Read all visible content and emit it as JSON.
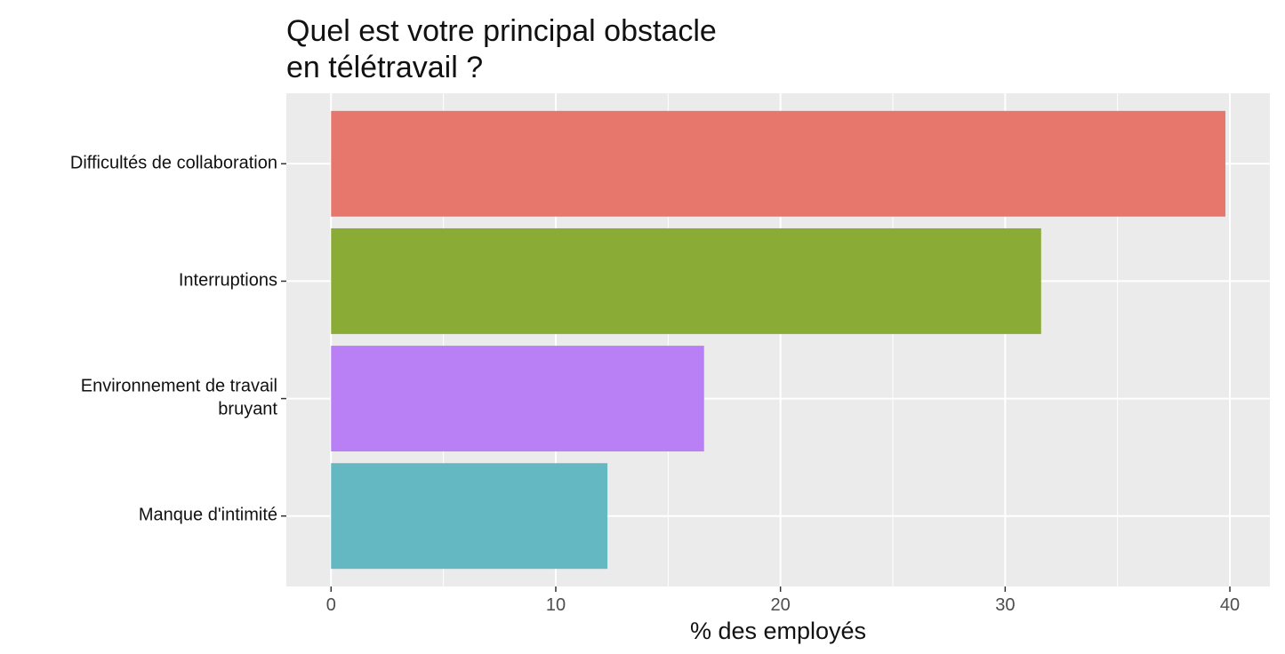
{
  "chart_data": {
    "type": "bar",
    "orientation": "horizontal",
    "title": "Quel est votre principal obstacle\nen télétravail ?",
    "categories": [
      "Difficultés de collaboration",
      "Interruptions",
      "Environnement de travail\nbruyant",
      "Manque d'intimité"
    ],
    "values": [
      39.8,
      31.6,
      16.6,
      12.3
    ],
    "colors": [
      "#E7776C",
      "#8BAB37",
      "#B97FF4",
      "#63B8C1"
    ],
    "x_label": "% des employés",
    "xlim": [
      -1.99,
      41.78
    ],
    "xticks": [
      0,
      10,
      20,
      30,
      40
    ],
    "minor_xticks": [
      5,
      15,
      25,
      35
    ],
    "grid": true
  }
}
